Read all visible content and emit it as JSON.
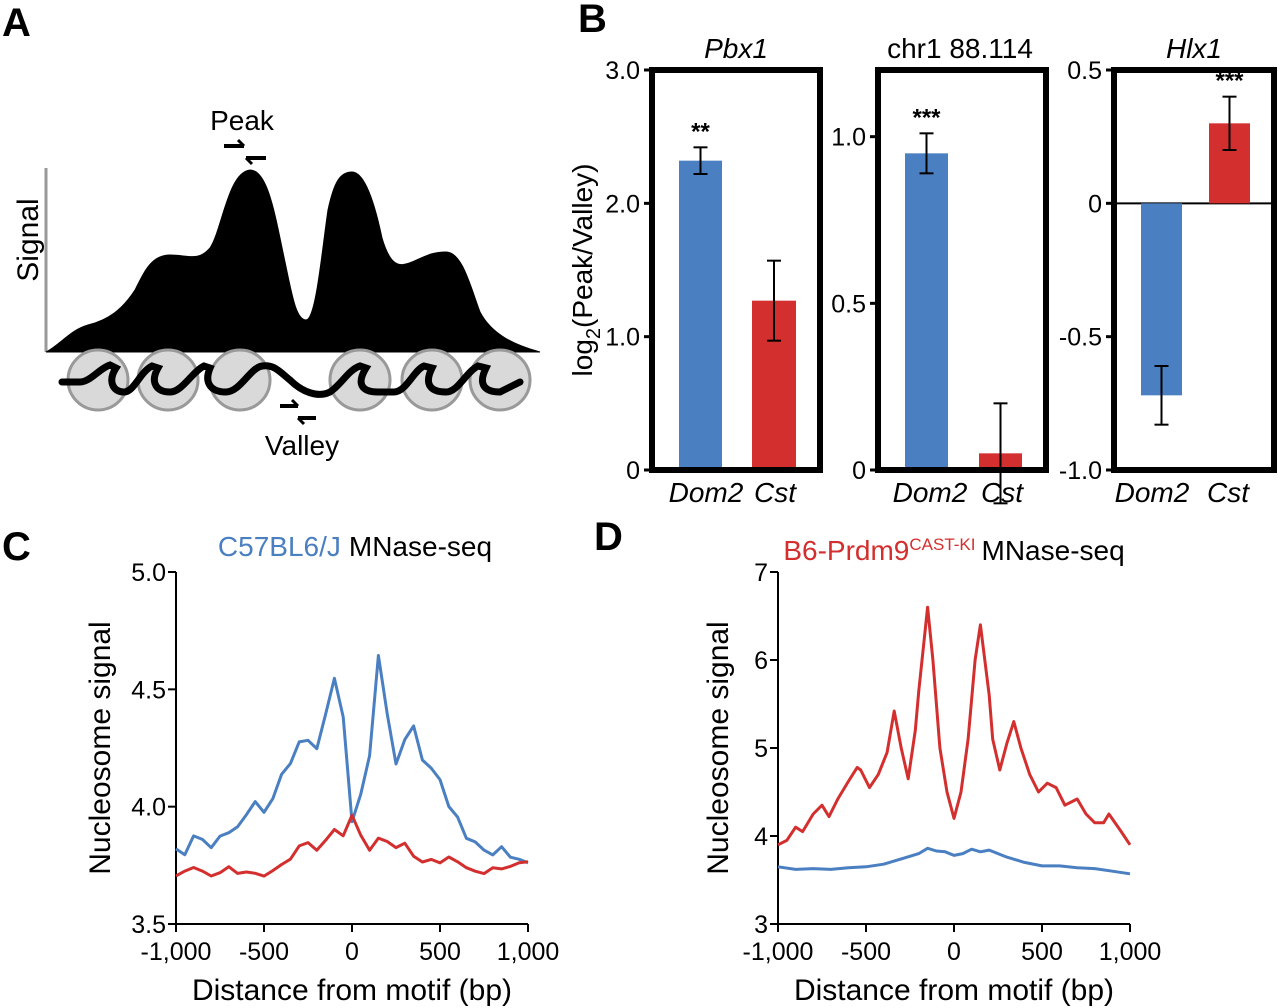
{
  "panel_a": {
    "letter": "A",
    "peak_label": "Peak",
    "valley_label": "Valley",
    "signal_label": "Signal"
  },
  "panel_b": {
    "letter": "B",
    "ylabel_pre": "log",
    "ylabel_sub": "2",
    "ylabel_post": "(Peak/Valley)"
  },
  "panel_c": {
    "letter": "C",
    "strain": "C57BL6/J",
    "assay": "MNase-seq"
  },
  "panel_d": {
    "letter": "D",
    "strain": "B6-Prdm9",
    "strain_sup": "CAST-KI",
    "assay": "MNase-seq"
  },
  "colors": {
    "blue": "#4a7fc1",
    "red": "#d32f2f",
    "black": "#000000"
  },
  "chart_data": [
    {
      "type": "bar",
      "id": "b1",
      "title": "Pbx1",
      "categories": [
        "Dom2",
        "Cst"
      ],
      "values": [
        2.32,
        1.27
      ],
      "errors": [
        0.1,
        0.3
      ],
      "significance": "**",
      "sig_on": 0,
      "ylim": [
        0,
        3.0
      ],
      "yticks": [
        0,
        1.0,
        2.0,
        3.0
      ],
      "ytick_labels": [
        "0",
        "1.0",
        "2.0",
        "3.0"
      ]
    },
    {
      "type": "bar",
      "id": "b2",
      "title": "chr1 88.114",
      "categories": [
        "Dom2",
        "Cst"
      ],
      "values": [
        0.95,
        0.05
      ],
      "errors": [
        0.06,
        0.15
      ],
      "significance": "***",
      "sig_on": 0,
      "ylim": [
        0,
        1.2
      ],
      "yticks": [
        0,
        0.5,
        1.0
      ],
      "ytick_labels": [
        "0",
        "0.5",
        "1.0"
      ]
    },
    {
      "type": "bar",
      "id": "b3",
      "title": "Hlx1",
      "categories": [
        "Dom2",
        "Cst"
      ],
      "values": [
        -0.72,
        0.3
      ],
      "errors": [
        0.11,
        0.1
      ],
      "significance": "***",
      "sig_on": 1,
      "ylim": [
        -1.0,
        0.5
      ],
      "yticks": [
        0.5,
        0,
        -0.5,
        -1.0
      ],
      "ytick_labels": [
        "0.5",
        "0",
        "-0.5",
        "-1.0"
      ]
    },
    {
      "type": "line",
      "id": "c",
      "xlabel": "Distance from motif (bp)",
      "ylabel": "Nucleosome signal",
      "xlim": [
        -1000,
        1000
      ],
      "ylim": [
        3.5,
        5.0
      ],
      "xticks": [
        -1000,
        -500,
        0,
        500,
        1000
      ],
      "xtick_labels": [
        "-1,000",
        "-500",
        "0",
        "500",
        "1,000"
      ],
      "yticks": [
        3.5,
        4.0,
        4.5,
        5.0
      ],
      "ytick_labels": [
        "3.5",
        "4.0",
        "4.5",
        "5.0"
      ],
      "series": [
        {
          "name": "C57BL6/J",
          "color": "#4a7fc1",
          "x": [
            -1000,
            -950,
            -900,
            -850,
            -800,
            -750,
            -700,
            -650,
            -600,
            -550,
            -500,
            -450,
            -400,
            -350,
            -300,
            -250,
            -200,
            -150,
            -100,
            -50,
            0,
            50,
            100,
            150,
            200,
            250,
            300,
            350,
            400,
            450,
            500,
            550,
            600,
            650,
            700,
            750,
            800,
            850,
            900,
            950,
            1000
          ],
          "y": [
            3.82,
            3.79,
            3.87,
            3.86,
            3.83,
            3.88,
            3.89,
            3.91,
            3.96,
            4.02,
            3.98,
            4.04,
            4.14,
            4.18,
            4.27,
            4.28,
            4.25,
            4.4,
            4.55,
            4.38,
            3.93,
            4.05,
            4.22,
            4.65,
            4.4,
            4.18,
            4.28,
            4.34,
            4.2,
            4.17,
            4.12,
            4.0,
            3.95,
            3.86,
            3.85,
            3.82,
            3.8,
            3.83,
            3.78,
            3.77,
            3.76
          ]
        },
        {
          "name": "B6-Prdm9 CAST-KI",
          "color": "#d32f2f",
          "x": [
            -1000,
            -950,
            -900,
            -850,
            -800,
            -750,
            -700,
            -650,
            -600,
            -550,
            -500,
            -450,
            -400,
            -350,
            -300,
            -250,
            -200,
            -150,
            -100,
            -50,
            0,
            50,
            100,
            150,
            200,
            250,
            300,
            350,
            400,
            450,
            500,
            550,
            600,
            650,
            700,
            750,
            800,
            850,
            900,
            950,
            1000
          ],
          "y": [
            3.7,
            3.72,
            3.74,
            3.73,
            3.71,
            3.72,
            3.74,
            3.71,
            3.72,
            3.72,
            3.71,
            3.73,
            3.75,
            3.77,
            3.83,
            3.85,
            3.82,
            3.86,
            3.9,
            3.87,
            3.96,
            3.88,
            3.82,
            3.87,
            3.85,
            3.82,
            3.84,
            3.79,
            3.77,
            3.78,
            3.76,
            3.78,
            3.76,
            3.74,
            3.73,
            3.72,
            3.74,
            3.73,
            3.74,
            3.76,
            3.77
          ]
        }
      ]
    },
    {
      "type": "line",
      "id": "d",
      "xlabel": "Distance from motif (bp)",
      "ylabel": "Nucleosome signal",
      "xlim": [
        -1000,
        1000
      ],
      "ylim": [
        3,
        7
      ],
      "xticks": [
        -1000,
        -500,
        0,
        500,
        1000
      ],
      "xtick_labels": [
        "-1,000",
        "-500",
        "0",
        "500",
        "1,000"
      ],
      "yticks": [
        3,
        4,
        5,
        6,
        7
      ],
      "ytick_labels": [
        "3",
        "4",
        "5",
        "6",
        "7"
      ],
      "series": [
        {
          "name": "B6-Prdm9 CAST-KI",
          "color": "#d32f2f",
          "x": [
            -1000,
            -950,
            -900,
            -860,
            -800,
            -750,
            -710,
            -660,
            -600,
            -550,
            -530,
            -480,
            -430,
            -380,
            -340,
            -300,
            -260,
            -220,
            -200,
            -150,
            -120,
            -80,
            -40,
            0,
            40,
            80,
            120,
            150,
            200,
            220,
            260,
            300,
            340,
            380,
            430,
            480,
            530,
            580,
            630,
            700,
            750,
            800,
            850,
            880,
            950,
            1000
          ],
          "y": [
            3.9,
            3.95,
            4.1,
            4.05,
            4.25,
            4.35,
            4.22,
            4.42,
            4.62,
            4.78,
            4.75,
            4.55,
            4.7,
            4.95,
            5.42,
            5.0,
            4.65,
            5.2,
            5.65,
            6.6,
            6.0,
            5.0,
            4.5,
            4.2,
            4.5,
            5.1,
            6.0,
            6.4,
            5.6,
            5.1,
            4.75,
            5.05,
            5.3,
            5.0,
            4.7,
            4.5,
            4.6,
            4.55,
            4.35,
            4.42,
            4.25,
            4.15,
            4.15,
            4.25,
            4.05,
            3.9
          ]
        },
        {
          "name": "C57BL6/J",
          "color": "#4a7fc1",
          "x": [
            -1000,
            -900,
            -800,
            -700,
            -600,
            -500,
            -400,
            -300,
            -200,
            -150,
            -100,
            -50,
            0,
            50,
            100,
            150,
            200,
            250,
            300,
            400,
            500,
            600,
            700,
            800,
            900,
            1000
          ],
          "y": [
            3.65,
            3.62,
            3.63,
            3.62,
            3.64,
            3.65,
            3.68,
            3.74,
            3.8,
            3.86,
            3.83,
            3.82,
            3.78,
            3.8,
            3.85,
            3.82,
            3.84,
            3.8,
            3.76,
            3.7,
            3.66,
            3.66,
            3.64,
            3.63,
            3.6,
            3.57
          ]
        }
      ]
    }
  ]
}
